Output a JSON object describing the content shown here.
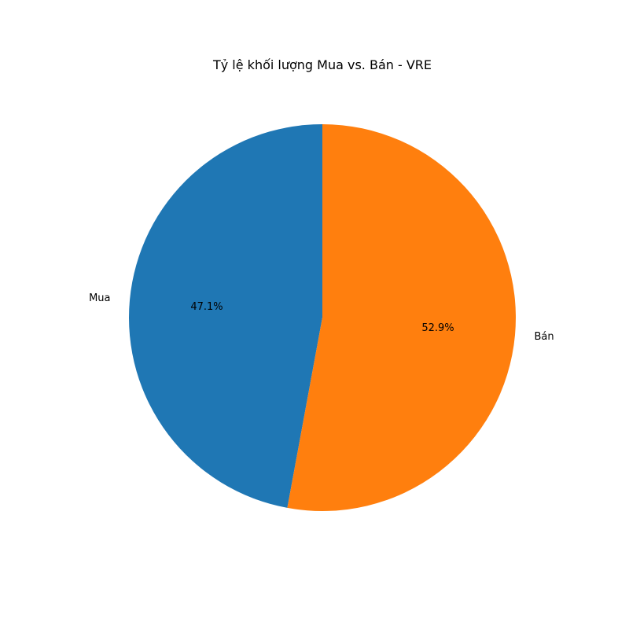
{
  "chart_data": {
    "type": "pie",
    "title": "Tỷ lệ khối lượng Mua vs. Bán - VRE",
    "start_angle_deg": 90,
    "direction": "counterclockwise",
    "slices": [
      {
        "label": "Mua",
        "percent_label": "47.1%",
        "value": 47.1,
        "color": "#1f77b4"
      },
      {
        "label": "Bán",
        "percent_label": "52.9%",
        "value": 52.9,
        "color": "#ff7f0e"
      }
    ],
    "legend": "none"
  }
}
